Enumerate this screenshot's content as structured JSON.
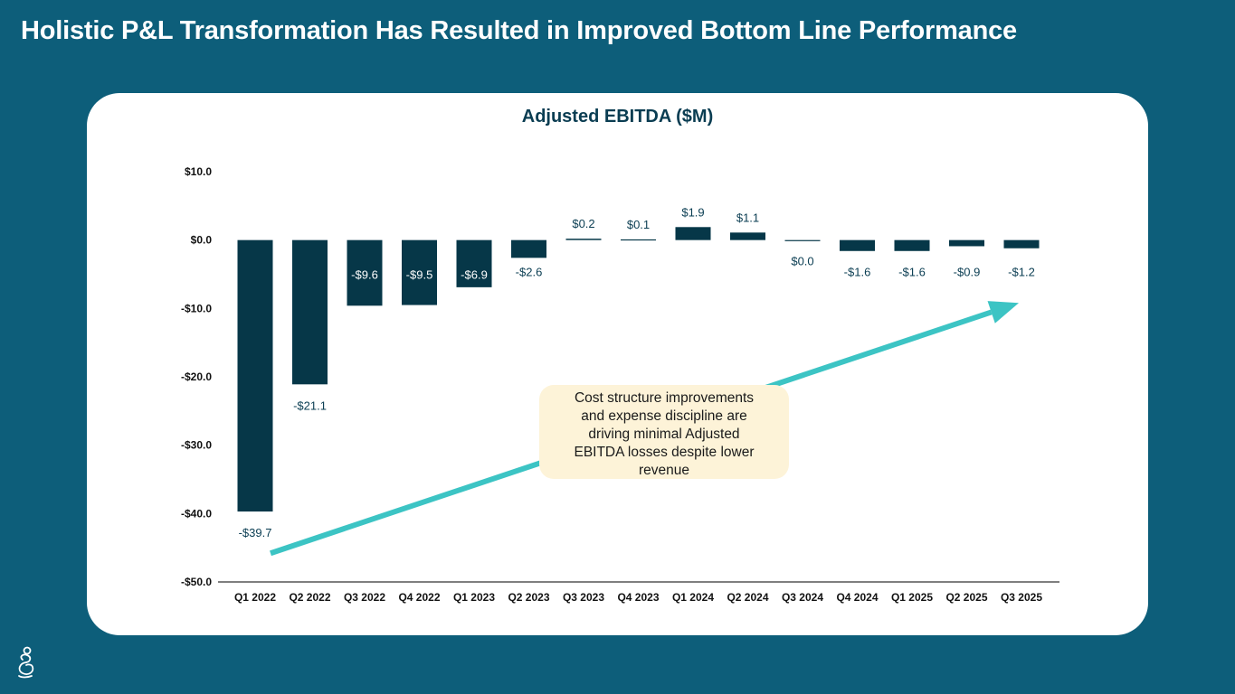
{
  "slide": {
    "title": "Holistic P&L Transformation Has Resulted in Improved Bottom Line Performance"
  },
  "colors": {
    "background": "#0d5e7a",
    "card": "#ffffff",
    "bar": "#063748",
    "arrow": "#3cc4c4",
    "callout_bg": "#fdf3d8"
  },
  "callout": {
    "text": "Cost structure improvements and expense discipline are driving minimal Adjusted EBITDA losses despite lower revenue"
  },
  "logo": {
    "icon": "brand-logo-icon"
  },
  "chart_data": {
    "type": "bar",
    "title": "Adjusted EBITDA ($M)",
    "xlabel": "",
    "ylabel": "",
    "ylim": [
      -50,
      10
    ],
    "yticks": [
      10,
      0,
      -10,
      -20,
      -30,
      -40,
      -50
    ],
    "ytick_labels": [
      "$10.0",
      "$0.0",
      "-$10.0",
      "-$20.0",
      "-$30.0",
      "-$40.0",
      "-$50.0"
    ],
    "grid": false,
    "categories": [
      "Q1 2022",
      "Q2 2022",
      "Q3 2022",
      "Q4 2022",
      "Q1 2023",
      "Q2 2023",
      "Q3 2023",
      "Q4 2023",
      "Q1 2024",
      "Q2 2024",
      "Q3 2024",
      "Q4 2024",
      "Q1 2025",
      "Q2 2025",
      "Q3 2025"
    ],
    "values": [
      -39.7,
      -21.1,
      -9.6,
      -9.5,
      -6.9,
      -2.6,
      0.2,
      0.1,
      1.9,
      1.1,
      0.0,
      -1.6,
      -1.6,
      -0.9,
      -1.2
    ],
    "data_labels": [
      "-$39.7",
      "-$21.1",
      "-$9.6",
      "-$9.5",
      "-$6.9",
      "-$2.6",
      "$0.2",
      "$0.1",
      "$1.9",
      "$1.1",
      "$0.0",
      "-$1.6",
      "-$1.6",
      "-$0.9",
      "-$1.2"
    ],
    "trend_arrow": {
      "from": {
        "category": 0,
        "y": -45.8
      },
      "to": {
        "category": 14,
        "y": -9.2
      }
    }
  }
}
